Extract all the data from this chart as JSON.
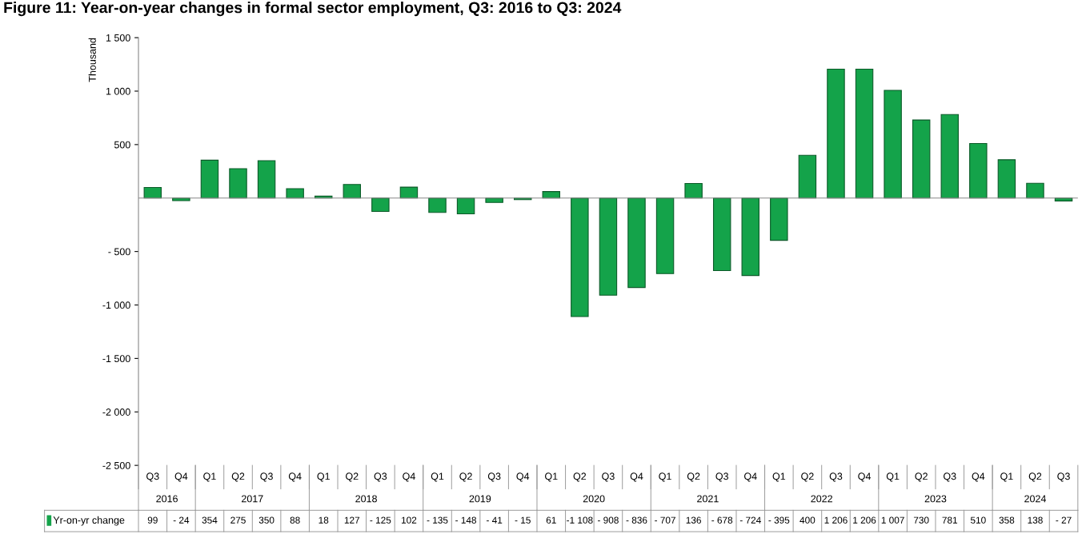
{
  "chart_data": {
    "type": "bar",
    "title": "Figure 11: Year-on-year changes in formal sector employment, Q3: 2016 to Q3: 2024",
    "ylabel": "Thousand",
    "categories": [
      "Q3",
      "Q4",
      "Q1",
      "Q2",
      "Q3",
      "Q4",
      "Q1",
      "Q2",
      "Q3",
      "Q4",
      "Q1",
      "Q2",
      "Q3",
      "Q4",
      "Q1",
      "Q2",
      "Q3",
      "Q4",
      "Q1",
      "Q2",
      "Q3",
      "Q4",
      "Q1",
      "Q2",
      "Q3",
      "Q4",
      "Q1",
      "Q2",
      "Q3",
      "Q4",
      "Q1",
      "Q2",
      "Q3"
    ],
    "annotations": [
      "2016",
      "2017",
      "2018",
      "2019",
      "2020",
      "2021",
      "2022",
      "2023",
      "2024"
    ],
    "series": [
      {
        "name": "Yr-on-yr change",
        "color": "#14a34a",
        "values": [
          99,
          -24,
          354,
          275,
          350,
          88,
          18,
          127,
          -125,
          102,
          -135,
          -148,
          -41,
          -15,
          61,
          -1108,
          -908,
          -836,
          -707,
          136,
          -678,
          -724,
          -395,
          400,
          1206,
          1206,
          1007,
          730,
          781,
          510,
          358,
          138,
          -27
        ],
        "value_labels": [
          "99",
          "- 24",
          "354",
          "275",
          "350",
          "88",
          "18",
          "127",
          "- 125",
          "102",
          "- 135",
          "- 148",
          "- 41",
          "- 15",
          "61",
          "-1 108",
          "- 908",
          "- 836",
          "- 707",
          "136",
          "- 678",
          "- 724",
          "- 395",
          "400",
          "1 206",
          "1 206",
          "1 007",
          "730",
          "781",
          "510",
          "358",
          "138",
          "- 27"
        ]
      }
    ],
    "ylim": [
      -2500,
      1500
    ],
    "yticks": [
      {
        "value": -2500,
        "label": "-2 500"
      },
      {
        "value": -2000,
        "label": "-2 000"
      },
      {
        "value": -1500,
        "label": "-1 500"
      },
      {
        "value": -1000,
        "label": "-1 000"
      },
      {
        "value": -500,
        "label": "- 500"
      },
      {
        "value": 500,
        "label": "500"
      },
      {
        "value": 1000,
        "label": "1 000"
      },
      {
        "value": 1500,
        "label": "1 500"
      }
    ],
    "grid": false,
    "legend": "bottom"
  }
}
